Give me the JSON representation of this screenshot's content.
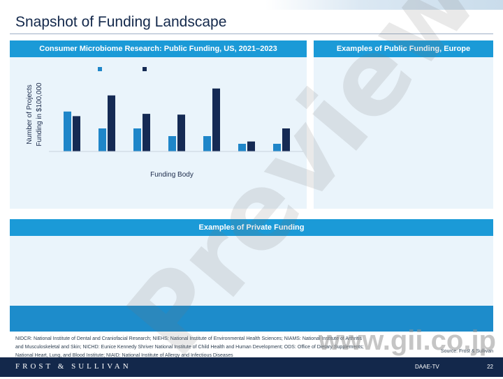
{
  "page": {
    "title": "Snapshot of Funding Landscape"
  },
  "panels": {
    "us_title": "Consumer Microbiome Research: Public Funding, US, 2021–2023",
    "europe_title": "Examples of Public Funding, Europe",
    "private_title": "Examples of Private Funding"
  },
  "chart_data": {
    "type": "bar",
    "title": "Consumer Microbiome Research: Public Funding, US, 2021–2023",
    "xlabel": "Funding Body",
    "ylabel": "Number of Projects Funding in $100,000",
    "ylabel_lines": [
      "Number of Projects",
      "Funding in $100,000"
    ],
    "categories": [
      "",
      "",
      "",
      "",
      "",
      "",
      ""
    ],
    "legend_placement": "top",
    "grid": false,
    "series": [
      {
        "name": "",
        "color": "#1f86c9",
        "values": [
          52,
          30,
          30,
          20,
          20,
          10,
          10
        ]
      },
      {
        "name": "",
        "color": "#152a54",
        "values": [
          46,
          73,
          49,
          48,
          82,
          13,
          30
        ]
      }
    ]
  },
  "footnote": {
    "line1": "NIDCR: National Institute of Dental and Craniofacial Research; NIEHS: National Institute of Environmental Health Sciences; NIAMS: National Institute of Arthritis",
    "line2": "and Musculoskeletal and Skin; NICHD: Eunice Kennedy Shriver National Institute of Child Health and Human Development; ODS: Office of Dietary Supplements;",
    "line3": "National Heart, Lung, and Blood Institute; NIAID: National Institute of Allergy and Infectious Diseases",
    "source": "Source: Frost & Sullivan"
  },
  "watermark": {
    "text": "Preview",
    "site": "www.gii.co.jp"
  },
  "footer": {
    "brand": "FROST & SULLIVAN",
    "code": "DAAE-TV",
    "page_number": "22"
  }
}
